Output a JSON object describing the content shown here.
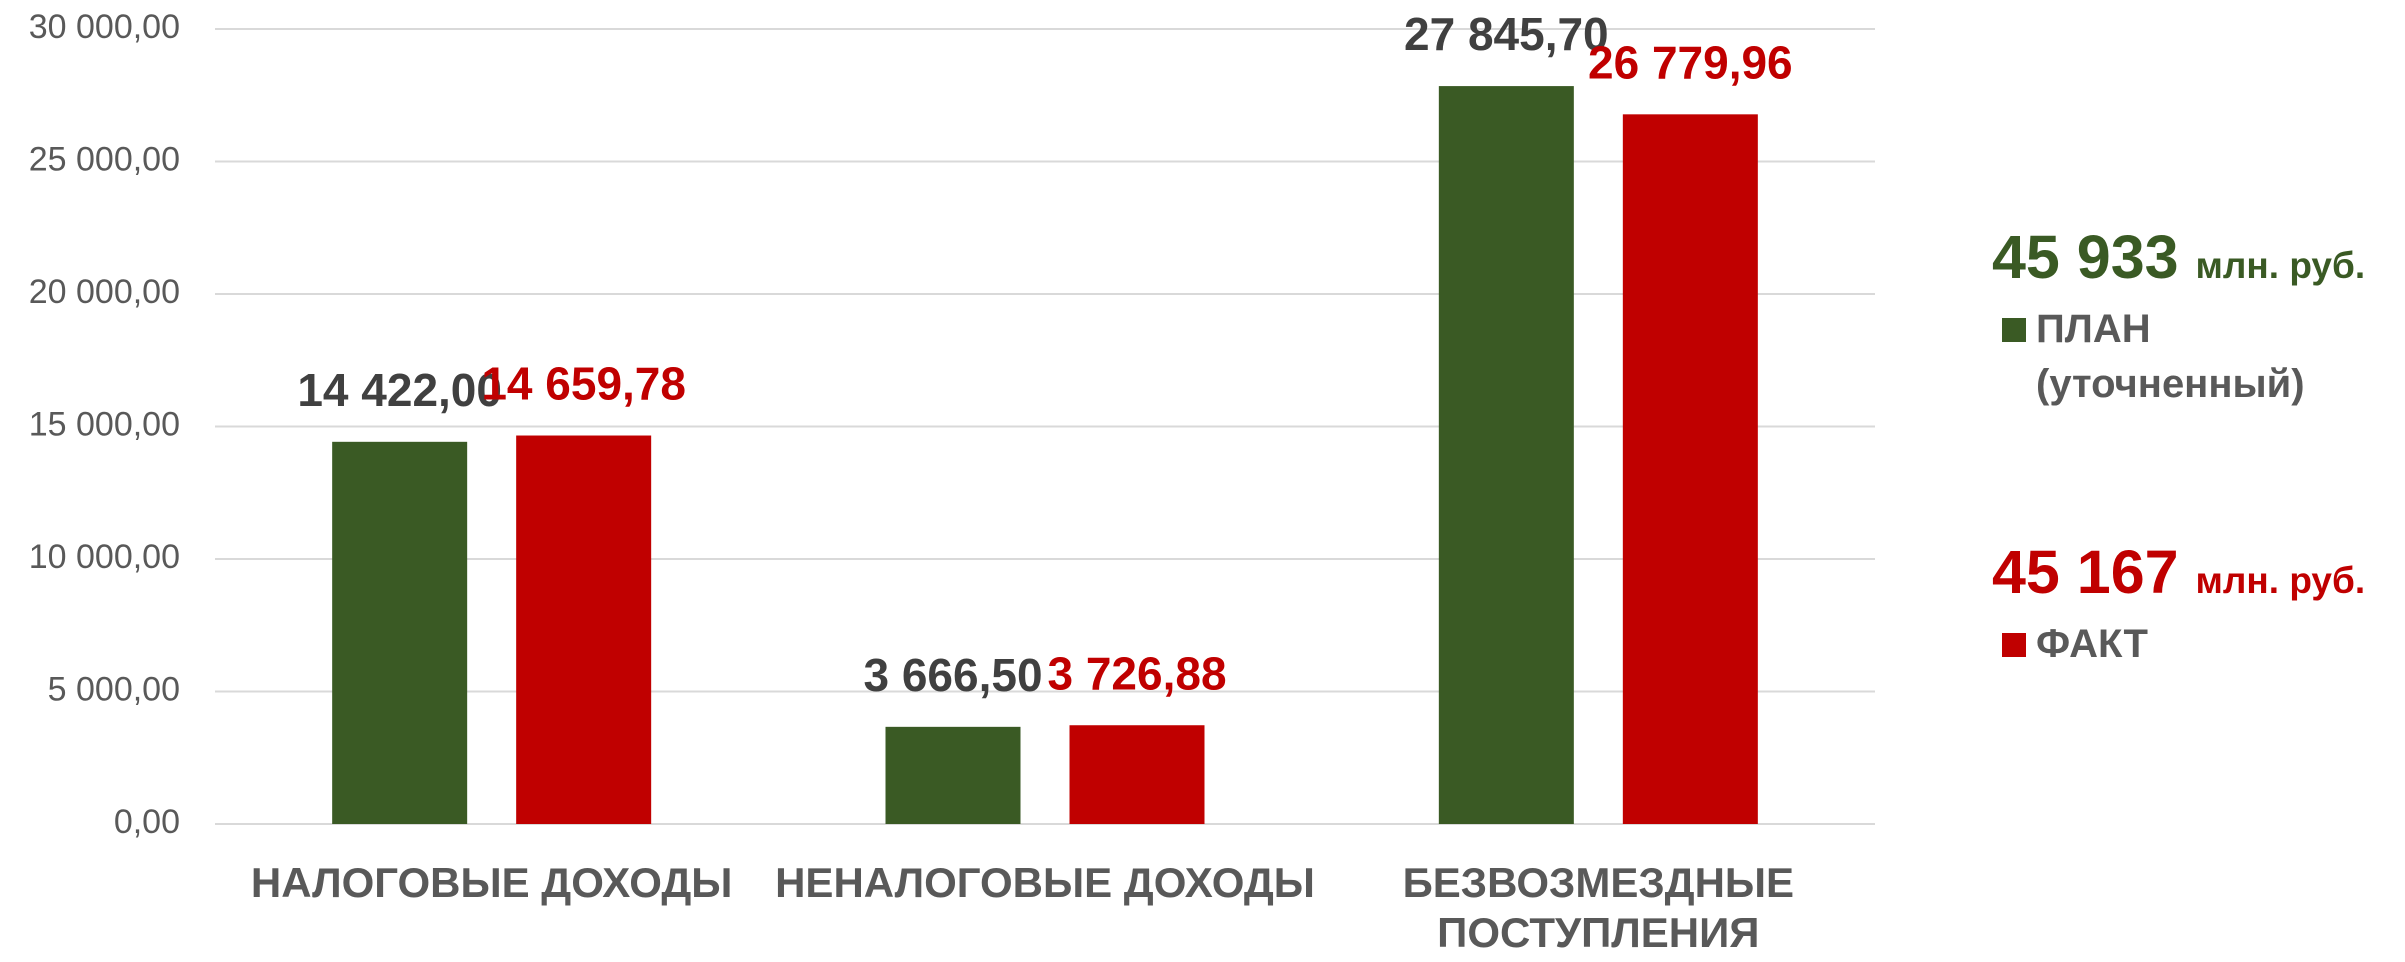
{
  "chart_data": {
    "type": "bar",
    "categories": [
      "НАЛОГОВЫЕ ДОХОДЫ",
      "НЕНАЛОГОВЫЕ ДОХОДЫ",
      "БЕЗВОЗМЕЗДНЫЕ ПОСТУПЛЕНИЯ"
    ],
    "series": [
      {
        "name": "ПЛАН (уточненный)",
        "color": "#3a5a24",
        "label_color": "#404040",
        "values": [
          14422.0,
          3666.5,
          27845.7
        ],
        "value_labels": [
          "14 422,00",
          "3 666,50",
          "27 845,70"
        ],
        "total": "45 933",
        "unit": "млн. руб."
      },
      {
        "name": "ФАКТ",
        "color": "#c00000",
        "label_color": "#c00000",
        "values": [
          14659.78,
          3726.88,
          26779.96
        ],
        "value_labels": [
          "14 659,78",
          "3 726,88",
          "26 779,96"
        ],
        "total": "45 167",
        "unit": "млн. руб."
      }
    ],
    "ylim": [
      0,
      30000
    ],
    "yticks": [
      {
        "value": 0,
        "label": "0,00"
      },
      {
        "value": 5000,
        "label": "5 000,00"
      },
      {
        "value": 10000,
        "label": "10 000,00"
      },
      {
        "value": 15000,
        "label": "15 000,00"
      },
      {
        "value": 20000,
        "label": "20 000,00"
      },
      {
        "value": 25000,
        "label": "25 000,00"
      },
      {
        "value": 30000,
        "label": "30 000,00"
      }
    ],
    "grid": true
  }
}
